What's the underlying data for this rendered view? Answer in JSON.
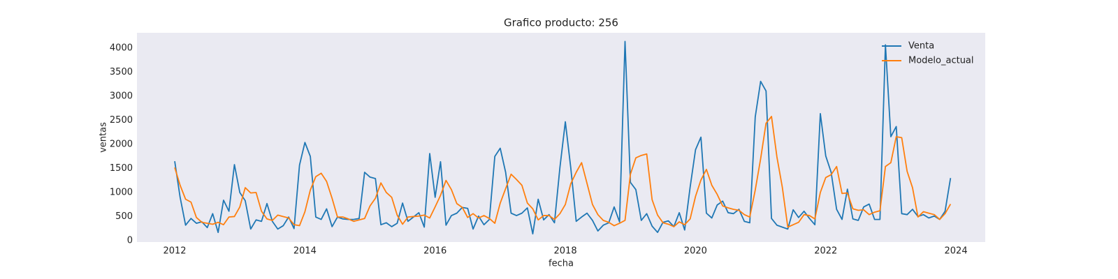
{
  "chart_data": {
    "type": "line",
    "title": "Grafico producto: 256",
    "xlabel": "fecha",
    "ylabel": "ventas",
    "x": [
      2012,
      2012.083,
      2012.167,
      2012.25,
      2012.333,
      2012.417,
      2012.5,
      2012.583,
      2012.667,
      2012.75,
      2012.833,
      2012.917,
      2013,
      2013.083,
      2013.167,
      2013.25,
      2013.333,
      2013.417,
      2013.5,
      2013.583,
      2013.667,
      2013.75,
      2013.833,
      2013.917,
      2014,
      2014.083,
      2014.167,
      2014.25,
      2014.333,
      2014.417,
      2014.5,
      2014.583,
      2014.667,
      2014.75,
      2014.833,
      2014.917,
      2015,
      2015.083,
      2015.167,
      2015.25,
      2015.333,
      2015.417,
      2015.5,
      2015.583,
      2015.667,
      2015.75,
      2015.833,
      2015.917,
      2016,
      2016.083,
      2016.167,
      2016.25,
      2016.333,
      2016.417,
      2016.5,
      2016.583,
      2016.667,
      2016.75,
      2016.833,
      2016.917,
      2017,
      2017.083,
      2017.167,
      2017.25,
      2017.333,
      2017.417,
      2017.5,
      2017.583,
      2017.667,
      2017.75,
      2017.833,
      2017.917,
      2018,
      2018.083,
      2018.167,
      2018.25,
      2018.333,
      2018.417,
      2018.5,
      2018.583,
      2018.667,
      2018.75,
      2018.833,
      2018.917,
      2019,
      2019.083,
      2019.167,
      2019.25,
      2019.333,
      2019.417,
      2019.5,
      2019.583,
      2019.667,
      2019.75,
      2019.833,
      2019.917,
      2020,
      2020.083,
      2020.167,
      2020.25,
      2020.333,
      2020.417,
      2020.5,
      2020.583,
      2020.667,
      2020.75,
      2020.833,
      2020.917,
      2021,
      2021.083,
      2021.167,
      2021.25,
      2021.333,
      2021.417,
      2021.5,
      2021.583,
      2021.667,
      2021.75,
      2021.833,
      2021.917,
      2022,
      2022.083,
      2022.167,
      2022.25,
      2022.333,
      2022.417,
      2022.5,
      2022.583,
      2022.667,
      2022.75,
      2022.833,
      2022.917,
      2023,
      2023.083,
      2023.167,
      2023.25,
      2023.333,
      2023.417,
      2023.5,
      2023.583,
      2023.667,
      2023.75,
      2023.833,
      2023.917
    ],
    "series": [
      {
        "name": "Venta",
        "color": "#1f77b4",
        "values": [
          1650,
          900,
          320,
          460,
          360,
          390,
          270,
          560,
          170,
          840,
          610,
          1580,
          1000,
          830,
          240,
          430,
          400,
          770,
          400,
          240,
          310,
          490,
          250,
          1570,
          2040,
          1750,
          490,
          440,
          660,
          290,
          490,
          450,
          440,
          440,
          460,
          1420,
          1320,
          1290,
          330,
          370,
          290,
          360,
          780,
          400,
          490,
          580,
          280,
          1810,
          900,
          1640,
          320,
          520,
          570,
          690,
          670,
          240,
          510,
          330,
          440,
          1750,
          1920,
          1420,
          570,
          520,
          570,
          680,
          140,
          860,
          430,
          540,
          370,
          1520,
          2470,
          1520,
          400,
          490,
          570,
          420,
          200,
          320,
          370,
          700,
          390,
          4140,
          1210,
          1060,
          420,
          560,
          300,
          170,
          380,
          410,
          290,
          580,
          220,
          1110,
          1890,
          2150,
          570,
          470,
          740,
          820,
          580,
          560,
          650,
          400,
          370,
          2570,
          3310,
          3110,
          460,
          320,
          280,
          240,
          640,
          480,
          610,
          460,
          330,
          2640,
          1760,
          1420,
          650,
          440,
          1070,
          450,
          420,
          700,
          760,
          440,
          440,
          4070,
          2160,
          2370,
          560,
          540,
          650,
          500,
          540,
          470,
          510,
          440,
          610,
          1300
        ]
      },
      {
        "name": "Modelo_actual",
        "color": "#ff7f0e",
        "values": [
          1520,
          1150,
          860,
          800,
          480,
          380,
          360,
          340,
          380,
          330,
          490,
          500,
          700,
          1100,
          990,
          1000,
          610,
          450,
          420,
          530,
          500,
          470,
          330,
          310,
          600,
          1050,
          1330,
          1400,
          1230,
          880,
          490,
          490,
          450,
          400,
          430,
          460,
          720,
          880,
          1200,
          1000,
          900,
          530,
          340,
          490,
          500,
          510,
          530,
          470,
          700,
          940,
          1250,
          1060,
          770,
          690,
          480,
          560,
          470,
          520,
          460,
          360,
          780,
          1080,
          1380,
          1270,
          1150,
          780,
          660,
          430,
          520,
          520,
          440,
          560,
          750,
          1180,
          1420,
          1620,
          1190,
          750,
          540,
          420,
          380,
          310,
          360,
          420,
          1380,
          1720,
          1770,
          1800,
          850,
          530,
          370,
          340,
          290,
          390,
          330,
          450,
          920,
          1260,
          1480,
          1150,
          960,
          720,
          680,
          650,
          630,
          540,
          490,
          1050,
          1700,
          2440,
          2580,
          1740,
          1110,
          280,
          330,
          380,
          540,
          520,
          450,
          1000,
          1310,
          1370,
          1540,
          980,
          990,
          660,
          630,
          640,
          540,
          590,
          620,
          1540,
          1620,
          2160,
          2140,
          1440,
          1100,
          490,
          600,
          570,
          540,
          440,
          560,
          760
        ]
      }
    ],
    "xlim": [
      2011.42,
      2024.45
    ],
    "xticks": [
      2012,
      2014,
      2016,
      2018,
      2020,
      2022,
      2024
    ],
    "ylim": [
      -30,
      4320
    ],
    "yticks": [
      0,
      500,
      1000,
      1500,
      2000,
      2500,
      3000,
      3500,
      4000
    ],
    "grid": false,
    "legend": "upper right",
    "background": "#eaeaf2"
  }
}
